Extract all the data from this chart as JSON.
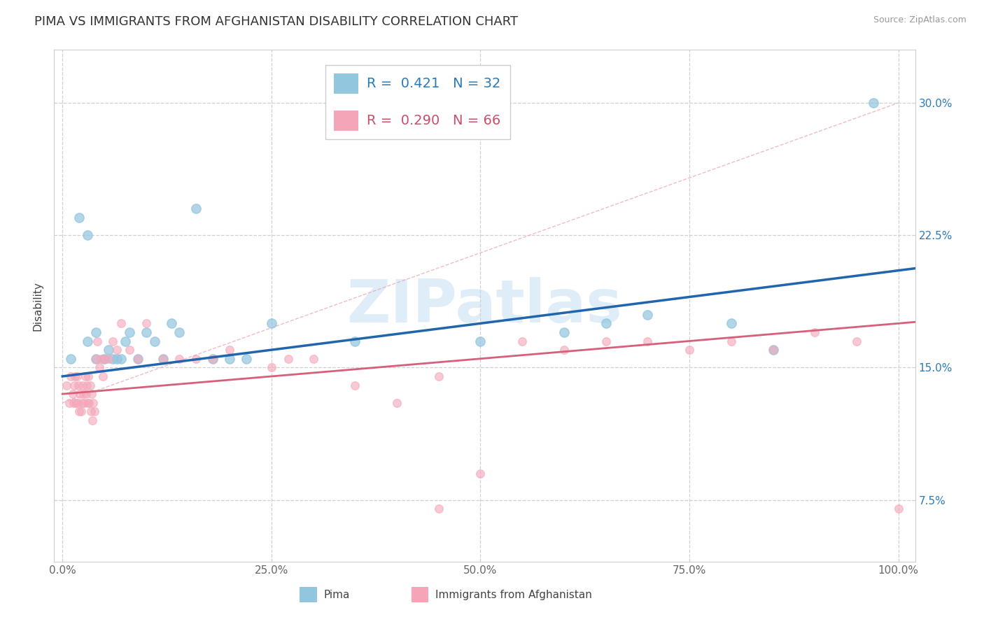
{
  "title": "PIMA VS IMMIGRANTS FROM AFGHANISTAN DISABILITY CORRELATION CHART",
  "source_text": "Source: ZipAtlas.com",
  "ylabel": "Disability",
  "watermark": "ZIPatlas",
  "xlim": [
    -0.01,
    1.02
  ],
  "ylim": [
    0.04,
    0.33
  ],
  "xticks": [
    0.0,
    0.25,
    0.5,
    0.75,
    1.0
  ],
  "xticklabels": [
    "0.0%",
    "25.0%",
    "50.0%",
    "75.0%",
    "100.0%"
  ],
  "yticks": [
    0.075,
    0.15,
    0.225,
    0.3
  ],
  "yticklabels": [
    "7.5%",
    "15.0%",
    "22.5%",
    "30.0%"
  ],
  "color_blue": "#92c5de",
  "color_pink": "#f4a6b8",
  "color_blue_dark": "#2166ac",
  "color_pink_dark": "#d6607a",
  "color_blue_text": "#2b7bba",
  "color_pink_text": "#c8506a",
  "ref_line_color": "#bbbbbb",
  "background_color": "#ffffff",
  "grid_color": "#d0d0d0",
  "pima_x": [
    0.01,
    0.02,
    0.03,
    0.03,
    0.04,
    0.04,
    0.05,
    0.055,
    0.06,
    0.065,
    0.07,
    0.075,
    0.08,
    0.09,
    0.1,
    0.11,
    0.12,
    0.13,
    0.14,
    0.16,
    0.18,
    0.2,
    0.22,
    0.25,
    0.35,
    0.5,
    0.6,
    0.65,
    0.7,
    0.8,
    0.85,
    0.97
  ],
  "pima_y": [
    0.155,
    0.235,
    0.225,
    0.165,
    0.17,
    0.155,
    0.155,
    0.16,
    0.155,
    0.155,
    0.155,
    0.165,
    0.17,
    0.155,
    0.17,
    0.165,
    0.155,
    0.175,
    0.17,
    0.24,
    0.155,
    0.155,
    0.155,
    0.175,
    0.165,
    0.165,
    0.17,
    0.175,
    0.18,
    0.175,
    0.16,
    0.3
  ],
  "afghan_x": [
    0.005,
    0.008,
    0.01,
    0.012,
    0.013,
    0.014,
    0.015,
    0.016,
    0.017,
    0.018,
    0.019,
    0.02,
    0.021,
    0.022,
    0.023,
    0.024,
    0.025,
    0.026,
    0.027,
    0.028,
    0.029,
    0.03,
    0.031,
    0.032,
    0.033,
    0.034,
    0.035,
    0.036,
    0.037,
    0.038,
    0.04,
    0.042,
    0.044,
    0.046,
    0.048,
    0.05,
    0.055,
    0.06,
    0.065,
    0.07,
    0.08,
    0.09,
    0.1,
    0.12,
    0.14,
    0.16,
    0.18,
    0.2,
    0.25,
    0.3,
    0.35,
    0.4,
    0.45,
    0.5,
    0.55,
    0.6,
    0.65,
    0.7,
    0.75,
    0.8,
    0.85,
    0.9,
    0.95,
    1.0,
    0.27,
    0.45
  ],
  "afghan_y": [
    0.14,
    0.13,
    0.145,
    0.135,
    0.13,
    0.14,
    0.145,
    0.13,
    0.145,
    0.13,
    0.14,
    0.125,
    0.135,
    0.125,
    0.13,
    0.14,
    0.135,
    0.13,
    0.145,
    0.135,
    0.14,
    0.13,
    0.145,
    0.13,
    0.14,
    0.125,
    0.135,
    0.12,
    0.13,
    0.125,
    0.155,
    0.165,
    0.15,
    0.155,
    0.145,
    0.155,
    0.155,
    0.165,
    0.16,
    0.175,
    0.16,
    0.155,
    0.175,
    0.155,
    0.155,
    0.155,
    0.155,
    0.16,
    0.15,
    0.155,
    0.14,
    0.13,
    0.145,
    0.09,
    0.165,
    0.16,
    0.165,
    0.165,
    0.16,
    0.165,
    0.16,
    0.17,
    0.165,
    0.07,
    0.155,
    0.07
  ],
  "title_fontsize": 13,
  "axis_fontsize": 11,
  "tick_fontsize": 11,
  "legend_fontsize": 14
}
